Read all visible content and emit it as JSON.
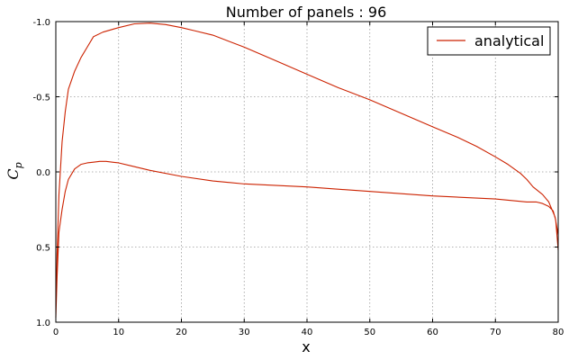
{
  "chart_data": {
    "type": "line",
    "title": "Number of panels : 96",
    "xlabel": "x",
    "ylabel_main": "C",
    "ylabel_sub": "p",
    "xlim": [
      0,
      80
    ],
    "ylim": [
      1.0,
      -1.0
    ],
    "y_inverted": true,
    "grid": true,
    "legend_position": "top-right",
    "x_ticks": [
      0,
      10,
      20,
      30,
      40,
      50,
      60,
      70,
      80
    ],
    "x_tick_labels": [
      "0",
      "10",
      "20",
      "30",
      "40",
      "50",
      "60",
      "70",
      "80"
    ],
    "y_ticks": [
      -1.0,
      -0.5,
      0.0,
      0.5,
      1.0
    ],
    "y_tick_labels": [
      "-1.0",
      "-0.5",
      "0.0",
      "0.5",
      "1.0"
    ],
    "series": [
      {
        "name": "analytical",
        "color": "#cc2200",
        "x": [
          80,
          79.5,
          78.5,
          77.5,
          76,
          75,
          74,
          72,
          70,
          67,
          64,
          60,
          55,
          50,
          45,
          40,
          35,
          30,
          25,
          22,
          20,
          17.5,
          15,
          12.5,
          10,
          7.5,
          6,
          5,
          4,
          3,
          2,
          1.5,
          1,
          0.5,
          0.2,
          0,
          0.2,
          0.5,
          1,
          1.5,
          2,
          3,
          4,
          5,
          6,
          7,
          8,
          9,
          10,
          12,
          15,
          20,
          25,
          30,
          40,
          50,
          60,
          70,
          75,
          76.5,
          77.5,
          78.5,
          79.2,
          79.6,
          80
        ],
        "y": [
          0.42,
          0.3,
          0.2,
          0.15,
          0.1,
          0.05,
          0.01,
          -0.05,
          -0.1,
          -0.17,
          -0.23,
          -0.3,
          -0.39,
          -0.48,
          -0.56,
          -0.65,
          -0.74,
          -0.83,
          -0.91,
          -0.94,
          -0.96,
          -0.98,
          -0.99,
          -0.985,
          -0.96,
          -0.93,
          -0.9,
          -0.83,
          -0.76,
          -0.67,
          -0.55,
          -0.4,
          -0.2,
          0.15,
          0.55,
          0.97,
          0.7,
          0.4,
          0.25,
          0.13,
          0.05,
          -0.02,
          -0.05,
          -0.06,
          -0.065,
          -0.07,
          -0.07,
          -0.065,
          -0.06,
          -0.04,
          -0.01,
          0.03,
          0.06,
          0.08,
          0.1,
          0.13,
          0.16,
          0.18,
          0.2,
          0.2,
          0.21,
          0.23,
          0.26,
          0.32,
          0.52
        ]
      }
    ]
  }
}
